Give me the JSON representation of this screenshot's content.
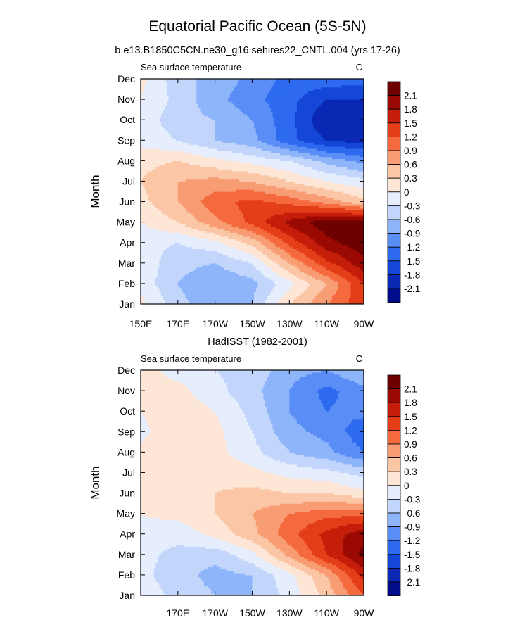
{
  "figure": {
    "title": "Equatorial Pacific Ocean (5S-5N)",
    "colors": {
      "levels": [
        -2.1,
        -1.8,
        -1.5,
        -1.2,
        -0.9,
        -0.6,
        -0.3,
        0,
        0.3,
        0.6,
        0.9,
        1.2,
        1.5,
        1.8,
        2.1
      ],
      "fills": [
        "#000c8a",
        "#0a28b4",
        "#1446d8",
        "#2d6af0",
        "#5a8ef6",
        "#8eb4fa",
        "#c2d6fc",
        "#e6eefe",
        "#fde6d6",
        "#fbc6a6",
        "#f89c74",
        "#f46a3e",
        "#e43e18",
        "#c41e0a",
        "#9a0a02",
        "#6e0000"
      ]
    }
  },
  "chart_data": [
    {
      "type": "heatmap",
      "panel_title": "b.e13.B1850C5CN.ne30_g16.sehires22_CNTL.004 (yrs 17-26)",
      "left_string": "Sea surface temperature",
      "right_string": "C",
      "ylabel": "Month",
      "xlabel": "",
      "x_range_deg_east": [
        150,
        270
      ],
      "y_range_months": [
        1,
        12
      ],
      "x_tick_values": [
        150,
        170,
        190,
        210,
        230,
        250,
        270
      ],
      "x_tick_labels": [
        "150E",
        "170E",
        "170W",
        "150W",
        "130W",
        "110W",
        "90W"
      ],
      "y_tick_labels": [
        "Jan",
        "Feb",
        "Mar",
        "Apr",
        "May",
        "Jun",
        "Jul",
        "Aug",
        "Sep",
        "Oct",
        "Nov",
        "Dec"
      ],
      "colorbar_labels": [
        "2.1",
        "1.8",
        "1.5",
        "1.2",
        "0.9",
        "0.6",
        "0.3",
        "0",
        "-0.3",
        "-0.6",
        "-0.9",
        "-1.2",
        "-1.5",
        "-1.8",
        "-2.1"
      ],
      "field": {
        "x_lon": [
          150,
          170,
          190,
          210,
          230,
          250,
          270
        ],
        "months": [
          "Jan",
          "Feb",
          "Mar",
          "Apr",
          "May",
          "Jun",
          "Jul",
          "Aug",
          "Sep",
          "Oct",
          "Nov",
          "Dec"
        ],
        "z": [
          [
            0.1,
            -0.5,
            -0.8,
            -0.6,
            0.3,
            0.9,
            1.4
          ],
          [
            -0.1,
            -0.6,
            -0.9,
            -0.7,
            -0.1,
            0.6,
            1.5
          ],
          [
            -0.1,
            -0.5,
            -0.6,
            -0.3,
            0.6,
            1.4,
            2.0
          ],
          [
            -0.2,
            -0.3,
            -0.1,
            0.4,
            1.3,
            2.0,
            2.3
          ],
          [
            0.0,
            0.3,
            0.8,
            1.3,
            1.9,
            2.3,
            2.3
          ],
          [
            0.2,
            0.6,
            1.1,
            1.3,
            1.1,
            0.8,
            0.4
          ],
          [
            0.3,
            0.6,
            0.7,
            0.6,
            0.3,
            0.0,
            -0.2
          ],
          [
            0.2,
            0.3,
            0.1,
            -0.1,
            -0.3,
            -0.7,
            -1.0
          ],
          [
            -0.1,
            -0.3,
            -0.6,
            -0.8,
            -1.4,
            -1.8,
            -1.9
          ],
          [
            -0.1,
            -0.5,
            -0.6,
            -0.9,
            -1.4,
            -2.1,
            -2.0
          ],
          [
            0.0,
            -0.4,
            -0.8,
            -1.1,
            -1.4,
            -1.8,
            -1.8
          ],
          [
            0.1,
            -0.5,
            -0.7,
            -1.0,
            -1.3,
            -1.3,
            -1.4
          ]
        ]
      }
    },
    {
      "type": "heatmap",
      "panel_title": "HadISST (1982-2001)",
      "left_string": "Sea surface temperature",
      "right_string": "C",
      "ylabel": "Month",
      "xlabel": "",
      "x_range_deg_east": [
        150,
        270
      ],
      "y_range_months": [
        1,
        12
      ],
      "x_tick_values": [
        170,
        190,
        210,
        230,
        250,
        270
      ],
      "x_tick_labels": [
        "170E",
        "170W",
        "150W",
        "130W",
        "110W",
        "90W"
      ],
      "y_tick_labels": [
        "Jan",
        "Feb",
        "Mar",
        "Apr",
        "May",
        "Jun",
        "Jul",
        "Aug",
        "Sep",
        "Oct",
        "Nov",
        "Dec"
      ],
      "colorbar_labels": [
        "2.1",
        "1.8",
        "1.5",
        "1.2",
        "0.9",
        "0.6",
        "0.3",
        "0",
        "-0.3",
        "-0.6",
        "-0.9",
        "-1.2",
        "-1.5",
        "-1.8",
        "-2.1"
      ],
      "field": {
        "x_lon": [
          150,
          170,
          190,
          210,
          230,
          250,
          270
        ],
        "months": [
          "Jan",
          "Feb",
          "Mar",
          "Apr",
          "May",
          "Jun",
          "Jul",
          "Aug",
          "Sep",
          "Oct",
          "Nov",
          "Dec"
        ],
        "z": [
          [
            -0.1,
            -0.4,
            -0.6,
            -0.6,
            -0.2,
            0.4,
            1.2
          ],
          [
            -0.2,
            -0.5,
            -0.7,
            -0.6,
            -0.1,
            0.6,
            1.6
          ],
          [
            -0.2,
            -0.4,
            -0.5,
            -0.1,
            0.7,
            1.5,
            2.2
          ],
          [
            -0.1,
            -0.2,
            0.1,
            0.5,
            1.1,
            1.6,
            2.0
          ],
          [
            0.0,
            0.1,
            0.3,
            0.6,
            0.9,
            1.1,
            1.1
          ],
          [
            0.1,
            0.2,
            0.3,
            0.4,
            0.3,
            0.3,
            0.1
          ],
          [
            0.1,
            0.2,
            0.2,
            0.1,
            -0.1,
            -0.2,
            -0.4
          ],
          [
            0.1,
            0.2,
            0.1,
            -0.2,
            -0.6,
            -0.8,
            -1.2
          ],
          [
            -0.1,
            0.3,
            0.1,
            -0.3,
            -0.8,
            -1.0,
            -1.4
          ],
          [
            0.0,
            0.2,
            0.0,
            -0.4,
            -0.9,
            -1.2,
            -1.1
          ],
          [
            0.1,
            0.1,
            -0.2,
            -0.5,
            -0.9,
            -1.3,
            -1.0
          ],
          [
            0.1,
            -0.1,
            -0.3,
            -0.4,
            -0.8,
            -0.9,
            -0.6
          ]
        ]
      }
    }
  ]
}
